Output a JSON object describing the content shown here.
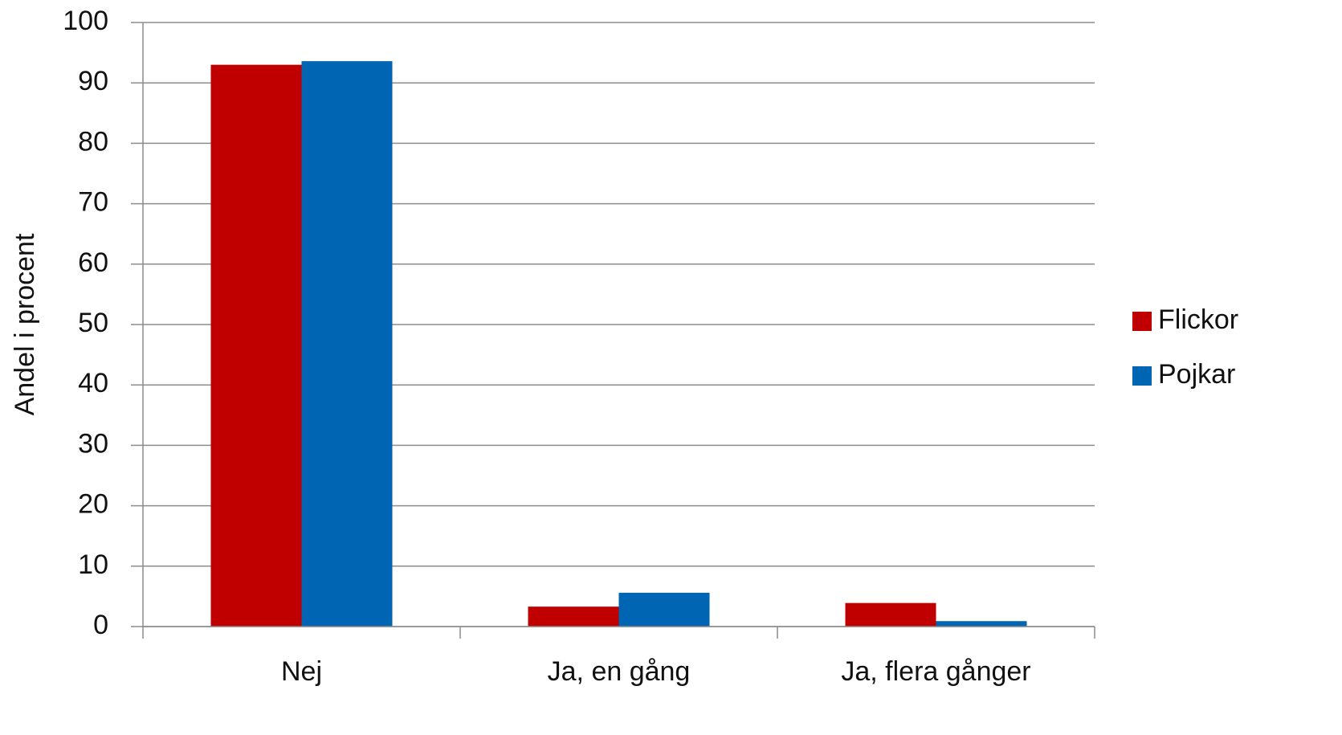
{
  "chart_data": {
    "type": "bar",
    "y_label": "Andel i procent",
    "categories": [
      "Nej",
      "Ja, en gång",
      "Ja, flera gånger"
    ],
    "series": [
      {
        "name": "Flickor",
        "color": "#c00000",
        "values": [
          93,
          3.3,
          3.9
        ]
      },
      {
        "name": "Pojkar",
        "color": "#0066b3",
        "values": [
          93.6,
          5.6,
          0.9
        ]
      }
    ],
    "ylim": [
      0,
      100
    ],
    "yticks": [
      0,
      10,
      20,
      30,
      40,
      50,
      60,
      70,
      80,
      90,
      100
    ],
    "grid": true,
    "legend": "right"
  }
}
